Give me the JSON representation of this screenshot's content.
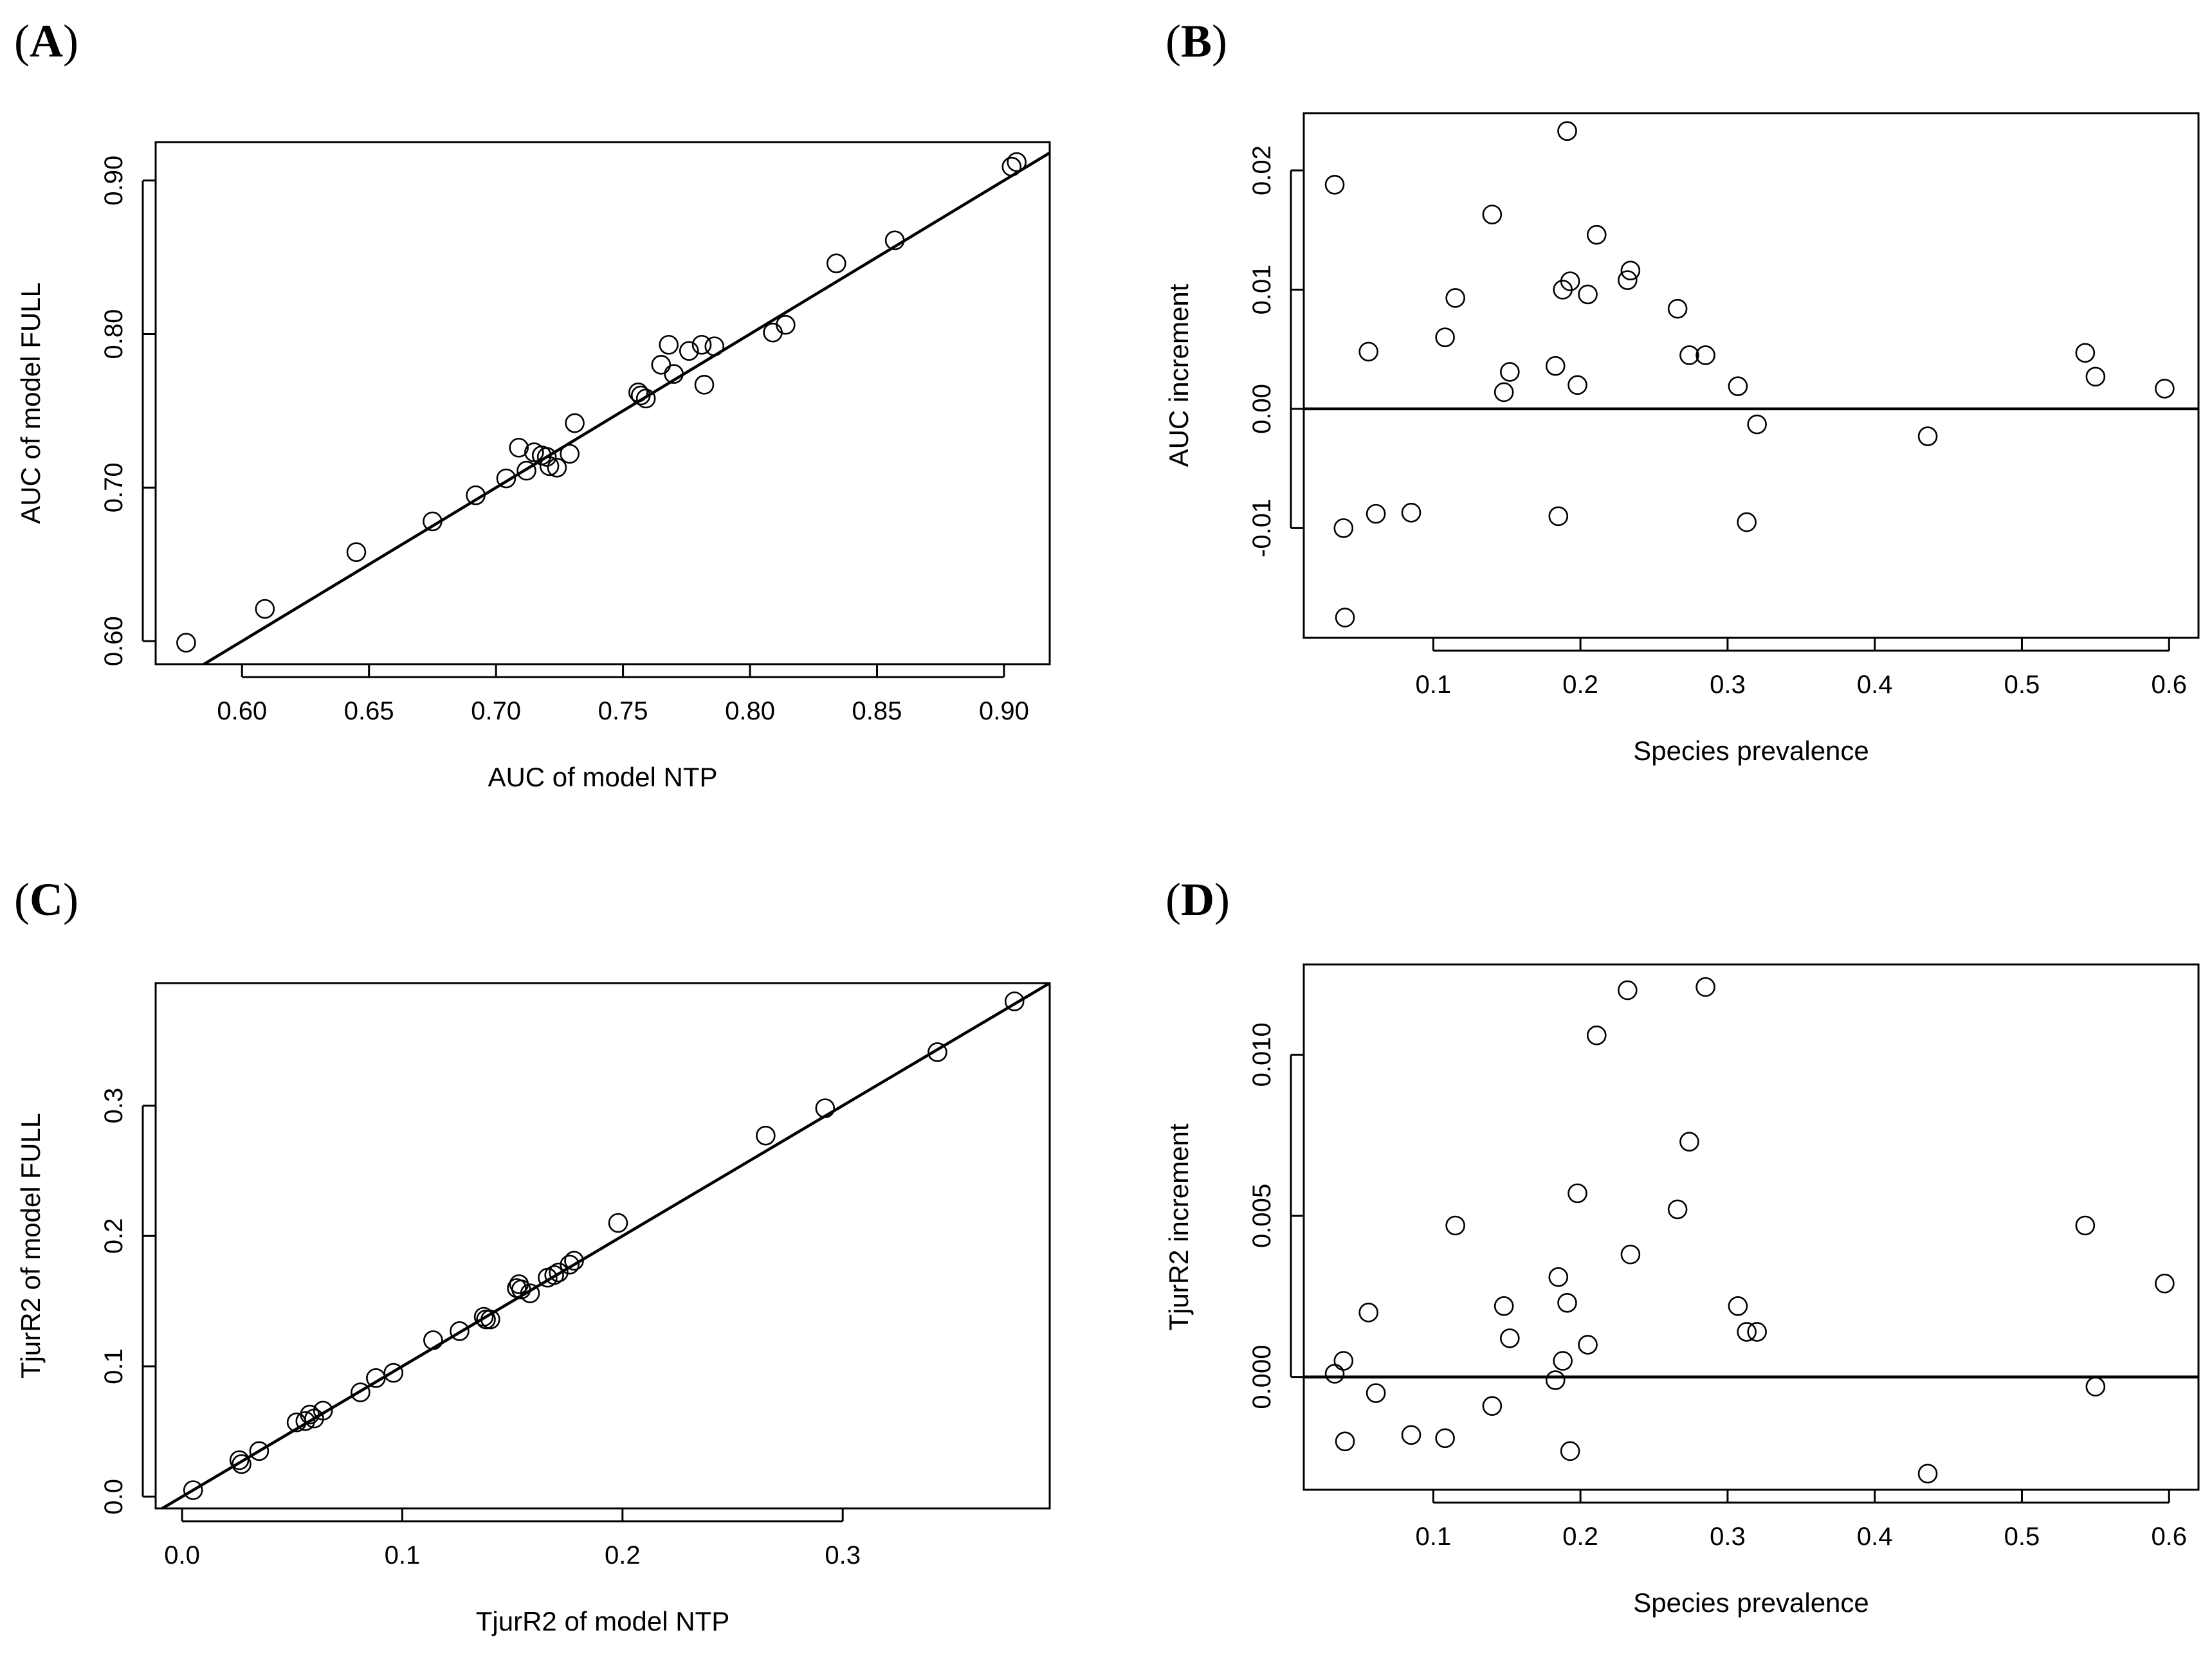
{
  "chart_data": [
    {
      "id": "A",
      "type": "scatter",
      "panel_label": "A",
      "xlabel": "AUC of model NTP",
      "ylabel": "AUC of model FULL",
      "xlim": [
        0.566,
        0.918
      ],
      "ylim": [
        0.585,
        0.925
      ],
      "xticks": [
        0.6,
        0.65,
        0.7,
        0.75,
        0.8,
        0.85,
        0.9
      ],
      "xtick_labels": [
        "0.60",
        "0.65",
        "0.70",
        "0.75",
        "0.80",
        "0.85",
        "0.90"
      ],
      "yticks": [
        0.6,
        0.7,
        0.8,
        0.9
      ],
      "ytick_labels": [
        "0.60",
        "0.70",
        "0.80",
        "0.90"
      ],
      "reference_line": {
        "type": "abline",
        "intercept": 0,
        "slope": 1
      },
      "points": [
        [
          0.578,
          0.599
        ],
        [
          0.609,
          0.621
        ],
        [
          0.645,
          0.658
        ],
        [
          0.675,
          0.678
        ],
        [
          0.692,
          0.695
        ],
        [
          0.704,
          0.706
        ],
        [
          0.709,
          0.726
        ],
        [
          0.712,
          0.711
        ],
        [
          0.715,
          0.723
        ],
        [
          0.718,
          0.721
        ],
        [
          0.72,
          0.72
        ],
        [
          0.721,
          0.714
        ],
        [
          0.724,
          0.713
        ],
        [
          0.729,
          0.722
        ],
        [
          0.731,
          0.742
        ],
        [
          0.756,
          0.762
        ],
        [
          0.757,
          0.76
        ],
        [
          0.759,
          0.758
        ],
        [
          0.765,
          0.78
        ],
        [
          0.768,
          0.793
        ],
        [
          0.77,
          0.774
        ],
        [
          0.776,
          0.789
        ],
        [
          0.781,
          0.793
        ],
        [
          0.782,
          0.767
        ],
        [
          0.786,
          0.792
        ],
        [
          0.809,
          0.801
        ],
        [
          0.814,
          0.806
        ],
        [
          0.834,
          0.846
        ],
        [
          0.857,
          0.861
        ],
        [
          0.903,
          0.909
        ],
        [
          0.905,
          0.912
        ]
      ]
    },
    {
      "id": "B",
      "type": "scatter",
      "panel_label": "B",
      "xlabel": "Species prevalence",
      "ylabel": "AUC increment",
      "xlim": [
        0.012,
        0.62
      ],
      "ylim": [
        -0.0192,
        0.0248
      ],
      "xticks": [
        0.1,
        0.2,
        0.3,
        0.4,
        0.5,
        0.6
      ],
      "xtick_labels": [
        "0.1",
        "0.2",
        "0.3",
        "0.4",
        "0.5",
        "0.6"
      ],
      "yticks": [
        -0.01,
        0.0,
        0.01,
        0.02
      ],
      "ytick_labels": [
        "-0.01",
        "0.00",
        "0.01",
        "0.02"
      ],
      "reference_line": {
        "type": "hline",
        "y": 0
      },
      "points": [
        [
          0.033,
          0.0188
        ],
        [
          0.039,
          -0.01
        ],
        [
          0.04,
          -0.0175
        ],
        [
          0.056,
          0.0048
        ],
        [
          0.061,
          -0.0088
        ],
        [
          0.085,
          -0.0087
        ],
        [
          0.108,
          0.006
        ],
        [
          0.115,
          0.0093
        ],
        [
          0.14,
          0.0163
        ],
        [
          0.148,
          0.0014
        ],
        [
          0.152,
          0.0031
        ],
        [
          0.183,
          0.0036
        ],
        [
          0.185,
          -0.009
        ],
        [
          0.188,
          0.01
        ],
        [
          0.191,
          0.0233
        ],
        [
          0.193,
          0.0107
        ],
        [
          0.198,
          0.002
        ],
        [
          0.205,
          0.0096
        ],
        [
          0.211,
          0.0146
        ],
        [
          0.232,
          0.0108
        ],
        [
          0.234,
          0.0116
        ],
        [
          0.266,
          0.0084
        ],
        [
          0.274,
          0.0045
        ],
        [
          0.285,
          0.0045
        ],
        [
          0.307,
          0.0019
        ],
        [
          0.313,
          -0.0095
        ],
        [
          0.32,
          -0.0013
        ],
        [
          0.436,
          -0.0023
        ],
        [
          0.543,
          0.0047
        ],
        [
          0.55,
          0.0027
        ],
        [
          0.597,
          0.0017
        ]
      ]
    },
    {
      "id": "C",
      "type": "scatter",
      "panel_label": "C",
      "xlabel": "TjurR2 of model NTP",
      "ylabel": "TjurR2 of model FULL",
      "xlim": [
        -0.012,
        0.394
      ],
      "ylim": [
        -0.009,
        0.394
      ],
      "xticks": [
        0.0,
        0.1,
        0.2,
        0.3
      ],
      "xtick_labels": [
        "0.0",
        "0.1",
        "0.2",
        "0.3"
      ],
      "yticks": [
        0.0,
        0.1,
        0.2,
        0.3
      ],
      "ytick_labels": [
        "0.0",
        "0.1",
        "0.2",
        "0.3"
      ],
      "reference_line": {
        "type": "abline",
        "intercept": 0,
        "slope": 1
      },
      "points": [
        [
          0.005,
          0.005
        ],
        [
          0.026,
          0.028
        ],
        [
          0.027,
          0.025
        ],
        [
          0.035,
          0.035
        ],
        [
          0.052,
          0.057
        ],
        [
          0.056,
          0.058
        ],
        [
          0.058,
          0.063
        ],
        [
          0.06,
          0.06
        ],
        [
          0.064,
          0.066
        ],
        [
          0.081,
          0.08
        ],
        [
          0.088,
          0.091
        ],
        [
          0.096,
          0.095
        ],
        [
          0.114,
          0.12
        ],
        [
          0.126,
          0.127
        ],
        [
          0.137,
          0.138
        ],
        [
          0.138,
          0.136
        ],
        [
          0.14,
          0.136
        ],
        [
          0.152,
          0.16
        ],
        [
          0.153,
          0.163
        ],
        [
          0.154,
          0.159
        ],
        [
          0.158,
          0.156
        ],
        [
          0.166,
          0.168
        ],
        [
          0.169,
          0.17
        ],
        [
          0.171,
          0.172
        ],
        [
          0.176,
          0.178
        ],
        [
          0.178,
          0.181
        ],
        [
          0.198,
          0.21
        ],
        [
          0.265,
          0.277
        ],
        [
          0.292,
          0.298
        ],
        [
          0.343,
          0.341
        ],
        [
          0.378,
          0.38
        ]
      ]
    },
    {
      "id": "D",
      "type": "scatter",
      "panel_label": "D",
      "xlabel": "Species prevalence",
      "ylabel": "TjurR2 increment",
      "xlim": [
        0.012,
        0.62
      ],
      "ylim": [
        -0.0035,
        0.0128
      ],
      "xticks": [
        0.1,
        0.2,
        0.3,
        0.4,
        0.5,
        0.6
      ],
      "xtick_labels": [
        "0.1",
        "0.2",
        "0.3",
        "0.4",
        "0.5",
        "0.6"
      ],
      "yticks": [
        0.0,
        0.005,
        0.01
      ],
      "ytick_labels": [
        "0.000",
        "0.005",
        "0.010"
      ],
      "reference_line": {
        "type": "hline",
        "y": 0
      },
      "points": [
        [
          0.033,
          0.0001
        ],
        [
          0.039,
          0.0005
        ],
        [
          0.04,
          -0.002
        ],
        [
          0.056,
          0.002
        ],
        [
          0.061,
          -0.0005
        ],
        [
          0.085,
          -0.0018
        ],
        [
          0.108,
          -0.0019
        ],
        [
          0.115,
          0.0047
        ],
        [
          0.14,
          -0.0009
        ],
        [
          0.148,
          0.0022
        ],
        [
          0.152,
          0.0012
        ],
        [
          0.183,
          -0.0001
        ],
        [
          0.185,
          0.0031
        ],
        [
          0.188,
          0.0005
        ],
        [
          0.191,
          0.0023
        ],
        [
          0.193,
          -0.0023
        ],
        [
          0.198,
          0.0057
        ],
        [
          0.205,
          0.001
        ],
        [
          0.211,
          0.0106
        ],
        [
          0.232,
          0.012
        ],
        [
          0.234,
          0.0038
        ],
        [
          0.266,
          0.0052
        ],
        [
          0.274,
          0.0073
        ],
        [
          0.285,
          0.0121
        ],
        [
          0.307,
          0.0022
        ],
        [
          0.313,
          0.0014
        ],
        [
          0.32,
          0.0014
        ],
        [
          0.436,
          -0.003
        ],
        [
          0.543,
          0.0047
        ],
        [
          0.55,
          -0.0003
        ],
        [
          0.597,
          0.0029
        ]
      ]
    }
  ]
}
